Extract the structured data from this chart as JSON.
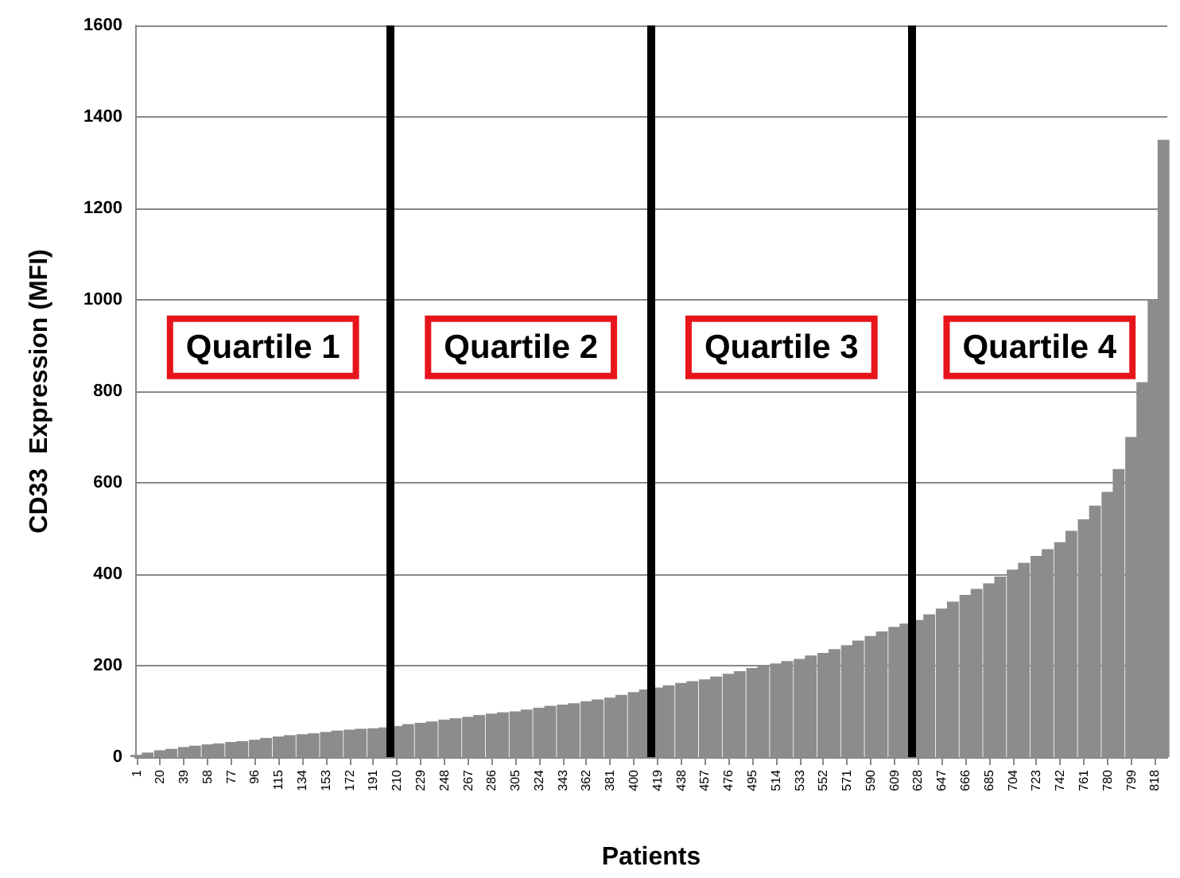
{
  "chart_data": {
    "type": "bar",
    "xlabel": "Patients",
    "ylabel": "CD33  Expression (MFI)",
    "x": [
      1,
      10,
      20,
      29,
      39,
      48,
      58,
      67,
      77,
      86,
      96,
      105,
      115,
      124,
      134,
      143,
      153,
      162,
      172,
      181,
      191,
      200,
      210,
      219,
      229,
      238,
      248,
      257,
      267,
      276,
      286,
      295,
      305,
      314,
      324,
      333,
      343,
      352,
      362,
      371,
      381,
      390,
      400,
      409,
      419,
      428,
      438,
      447,
      457,
      466,
      476,
      485,
      495,
      504,
      514,
      523,
      533,
      542,
      552,
      561,
      571,
      580,
      590,
      599,
      609,
      618,
      628,
      637,
      647,
      656,
      666,
      675,
      685,
      694,
      704,
      713,
      723,
      732,
      742,
      751,
      761,
      770,
      780,
      789,
      799,
      808,
      817,
      825
    ],
    "values": [
      5,
      10,
      15,
      18,
      22,
      25,
      28,
      30,
      33,
      35,
      38,
      42,
      45,
      48,
      50,
      52,
      55,
      58,
      60,
      62,
      63,
      65,
      68,
      72,
      75,
      78,
      82,
      85,
      88,
      92,
      95,
      98,
      100,
      104,
      108,
      112,
      115,
      118,
      122,
      126,
      130,
      136,
      142,
      148,
      152,
      157,
      162,
      166,
      170,
      176,
      182,
      188,
      195,
      200,
      205,
      210,
      215,
      222,
      228,
      236,
      245,
      255,
      265,
      275,
      285,
      292,
      300,
      312,
      325,
      340,
      355,
      368,
      380,
      395,
      410,
      425,
      440,
      455,
      470,
      495,
      520,
      550,
      580,
      630,
      700,
      820,
      1000,
      1350
    ],
    "color": "#8c8c8c",
    "xlim": [
      0,
      828
    ],
    "xticks": [
      1,
      20,
      39,
      58,
      77,
      96,
      115,
      134,
      153,
      172,
      191,
      210,
      229,
      248,
      267,
      286,
      305,
      324,
      343,
      362,
      381,
      400,
      419,
      438,
      457,
      476,
      495,
      514,
      533,
      552,
      571,
      590,
      609,
      628,
      647,
      666,
      685,
      704,
      723,
      742,
      761,
      780,
      799,
      818
    ],
    "ylim": [
      0,
      1600
    ],
    "yticks": [
      0,
      200,
      400,
      600,
      800,
      1000,
      1200,
      1400,
      1600
    ],
    "grid": "y",
    "ref_lines": [
      {
        "axis": "x",
        "value": 205,
        "color": "#000000"
      },
      {
        "axis": "x",
        "value": 414,
        "color": "#000000"
      },
      {
        "axis": "x",
        "value": 623,
        "color": "#000000"
      }
    ],
    "annotations": [
      "Quartile 1",
      "Quartile 2",
      "Quartile 3",
      "Quartile 4"
    ]
  }
}
